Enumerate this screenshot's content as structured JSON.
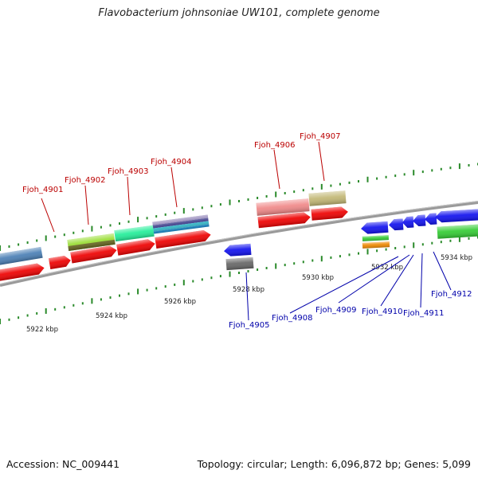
{
  "title": "Flavobacterium johnsoniae UW101, complete genome",
  "footer": {
    "accession": "Accession: NC_009441",
    "summary": "Topology: circular; Length: 6,096,872 bp; Genes: 5,099"
  },
  "scale": {
    "labels": [
      "5922 kbp",
      "5924 kbp",
      "5926 kbp",
      "5928 kbp",
      "5930 kbp",
      "5932 kbp",
      "5934 kbp"
    ]
  },
  "colors": {
    "forward_label": "#bb0000",
    "reverse_label": "#0000aa",
    "tick_major": "#2a8a2a",
    "tick_minor": "#2a8a2a",
    "backbone": "#8a8a8a"
  },
  "genes": {
    "forward": [
      {
        "name": "Fjoh_4901"
      },
      {
        "name": "Fjoh_4902"
      },
      {
        "name": "Fjoh_4903"
      },
      {
        "name": "Fjoh_4904"
      },
      {
        "name": "Fjoh_4906"
      },
      {
        "name": "Fjoh_4907"
      }
    ],
    "reverse": [
      {
        "name": "Fjoh_4905"
      },
      {
        "name": "Fjoh_4908"
      },
      {
        "name": "Fjoh_4909"
      },
      {
        "name": "Fjoh_4910"
      },
      {
        "name": "Fjoh_4911"
      },
      {
        "name": "Fjoh_4912"
      }
    ]
  }
}
